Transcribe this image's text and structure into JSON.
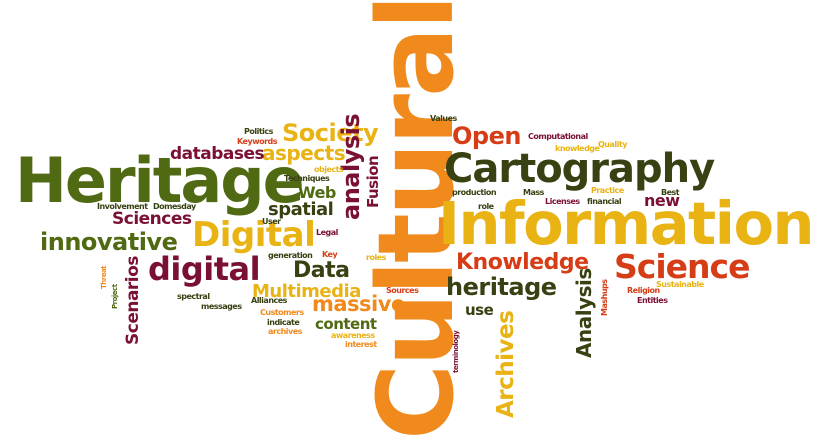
{
  "palette": {
    "olive": "#4f6a12",
    "orange": "#f08a1c",
    "yellow": "#e9b314",
    "red": "#d63d17",
    "maroon": "#7a1033",
    "darkgreen": "#374112"
  },
  "words": [
    {
      "text": "Cultural",
      "color": "orange",
      "orientation": "vertical"
    },
    {
      "text": "Information",
      "color": "yellow",
      "orientation": "horizontal"
    },
    {
      "text": "Heritage",
      "color": "olive",
      "orientation": "horizontal"
    },
    {
      "text": "Cartography",
      "color": "darkgreen",
      "orientation": "horizontal"
    },
    {
      "text": "Science",
      "color": "red",
      "orientation": "horizontal"
    },
    {
      "text": "Digital",
      "color": "yellow",
      "orientation": "horizontal"
    },
    {
      "text": "digital",
      "color": "maroon",
      "orientation": "horizontal"
    },
    {
      "text": "innovative",
      "color": "olive",
      "orientation": "horizontal"
    },
    {
      "text": "Knowledge",
      "color": "red",
      "orientation": "horizontal"
    },
    {
      "text": "heritage",
      "color": "darkgreen",
      "orientation": "horizontal"
    },
    {
      "text": "Open",
      "color": "red",
      "orientation": "horizontal"
    },
    {
      "text": "Society",
      "color": "yellow",
      "orientation": "horizontal"
    },
    {
      "text": "analysis",
      "color": "maroon",
      "orientation": "vertical"
    },
    {
      "text": "Data",
      "color": "darkgreen",
      "orientation": "horizontal"
    },
    {
      "text": "spatial",
      "color": "darkgreen",
      "orientation": "horizontal"
    },
    {
      "text": "aspects",
      "color": "yellow",
      "orientation": "horizontal"
    },
    {
      "text": "databases",
      "color": "maroon",
      "orientation": "horizontal"
    },
    {
      "text": "Sciences",
      "color": "maroon",
      "orientation": "horizontal"
    },
    {
      "text": "Multimedia",
      "color": "yellow",
      "orientation": "horizontal"
    },
    {
      "text": "massive",
      "color": "orange",
      "orientation": "horizontal"
    },
    {
      "text": "Scenarios",
      "color": "maroon",
      "orientation": "vertical"
    },
    {
      "text": "Archives",
      "color": "yellow",
      "orientation": "vertical"
    },
    {
      "text": "Analysis",
      "color": "darkgreen",
      "orientation": "vertical"
    },
    {
      "text": "new",
      "color": "maroon",
      "orientation": "horizontal"
    },
    {
      "text": "Web",
      "color": "olive",
      "orientation": "horizontal"
    },
    {
      "text": "Fusion",
      "color": "maroon",
      "orientation": "vertical"
    },
    {
      "text": "content",
      "color": "olive",
      "orientation": "horizontal"
    },
    {
      "text": "use",
      "color": "darkgreen",
      "orientation": "horizontal"
    },
    {
      "text": "Computational",
      "color": "maroon",
      "orientation": "horizontal"
    },
    {
      "text": "knowledge",
      "color": "yellow",
      "orientation": "horizontal"
    },
    {
      "text": "Quality",
      "color": "yellow",
      "orientation": "horizontal"
    },
    {
      "text": "Values",
      "color": "darkgreen",
      "orientation": "horizontal"
    },
    {
      "text": "Politics",
      "color": "darkgreen",
      "orientation": "horizontal"
    },
    {
      "text": "Keywords",
      "color": "red",
      "orientation": "horizontal"
    },
    {
      "text": "objects",
      "color": "yellow",
      "orientation": "horizontal"
    },
    {
      "text": "Techniques",
      "color": "darkgreen",
      "orientation": "horizontal"
    },
    {
      "text": "Involvement",
      "color": "darkgreen",
      "orientation": "horizontal"
    },
    {
      "text": "Domesday",
      "color": "darkgreen",
      "orientation": "horizontal"
    },
    {
      "text": "User",
      "color": "darkgreen",
      "orientation": "horizontal"
    },
    {
      "text": "Legal",
      "color": "maroon",
      "orientation": "horizontal"
    },
    {
      "text": "generation",
      "color": "darkgreen",
      "orientation": "horizontal"
    },
    {
      "text": "Key",
      "color": "red",
      "orientation": "horizontal"
    },
    {
      "text": "roles",
      "color": "yellow",
      "orientation": "horizontal"
    },
    {
      "text": "production",
      "color": "darkgreen",
      "orientation": "horizontal"
    },
    {
      "text": "Mass",
      "color": "darkgreen",
      "orientation": "horizontal"
    },
    {
      "text": "role",
      "color": "darkgreen",
      "orientation": "horizontal"
    },
    {
      "text": "Practice",
      "color": "yellow",
      "orientation": "horizontal"
    },
    {
      "text": "Best",
      "color": "darkgreen",
      "orientation": "horizontal"
    },
    {
      "text": "Licenses",
      "color": "maroon",
      "orientation": "horizontal"
    },
    {
      "text": "financial",
      "color": "darkgreen",
      "orientation": "horizontal"
    },
    {
      "text": "Threat",
      "color": "orange",
      "orientation": "vertical"
    },
    {
      "text": "Project",
      "color": "olive",
      "orientation": "vertical"
    },
    {
      "text": "spectral",
      "color": "darkgreen",
      "orientation": "horizontal"
    },
    {
      "text": "Alliances",
      "color": "darkgreen",
      "orientation": "horizontal"
    },
    {
      "text": "messages",
      "color": "darkgreen",
      "orientation": "horizontal"
    },
    {
      "text": "Customers",
      "color": "orange",
      "orientation": "horizontal"
    },
    {
      "text": "indicate",
      "color": "darkgreen",
      "orientation": "horizontal"
    },
    {
      "text": "archives",
      "color": "orange",
      "orientation": "horizontal"
    },
    {
      "text": "Sources",
      "color": "red",
      "orientation": "horizontal"
    },
    {
      "text": "awareness",
      "color": "yellow",
      "orientation": "horizontal"
    },
    {
      "text": "interest",
      "color": "orange",
      "orientation": "horizontal"
    },
    {
      "text": "terminology",
      "color": "maroon",
      "orientation": "vertical"
    },
    {
      "text": "Mashups",
      "color": "red",
      "orientation": "vertical"
    },
    {
      "text": "Religion",
      "color": "red",
      "orientation": "horizontal"
    },
    {
      "text": "Sustainable",
      "color": "yellow",
      "orientation": "horizontal"
    },
    {
      "text": "Entities",
      "color": "maroon",
      "orientation": "horizontal"
    }
  ]
}
